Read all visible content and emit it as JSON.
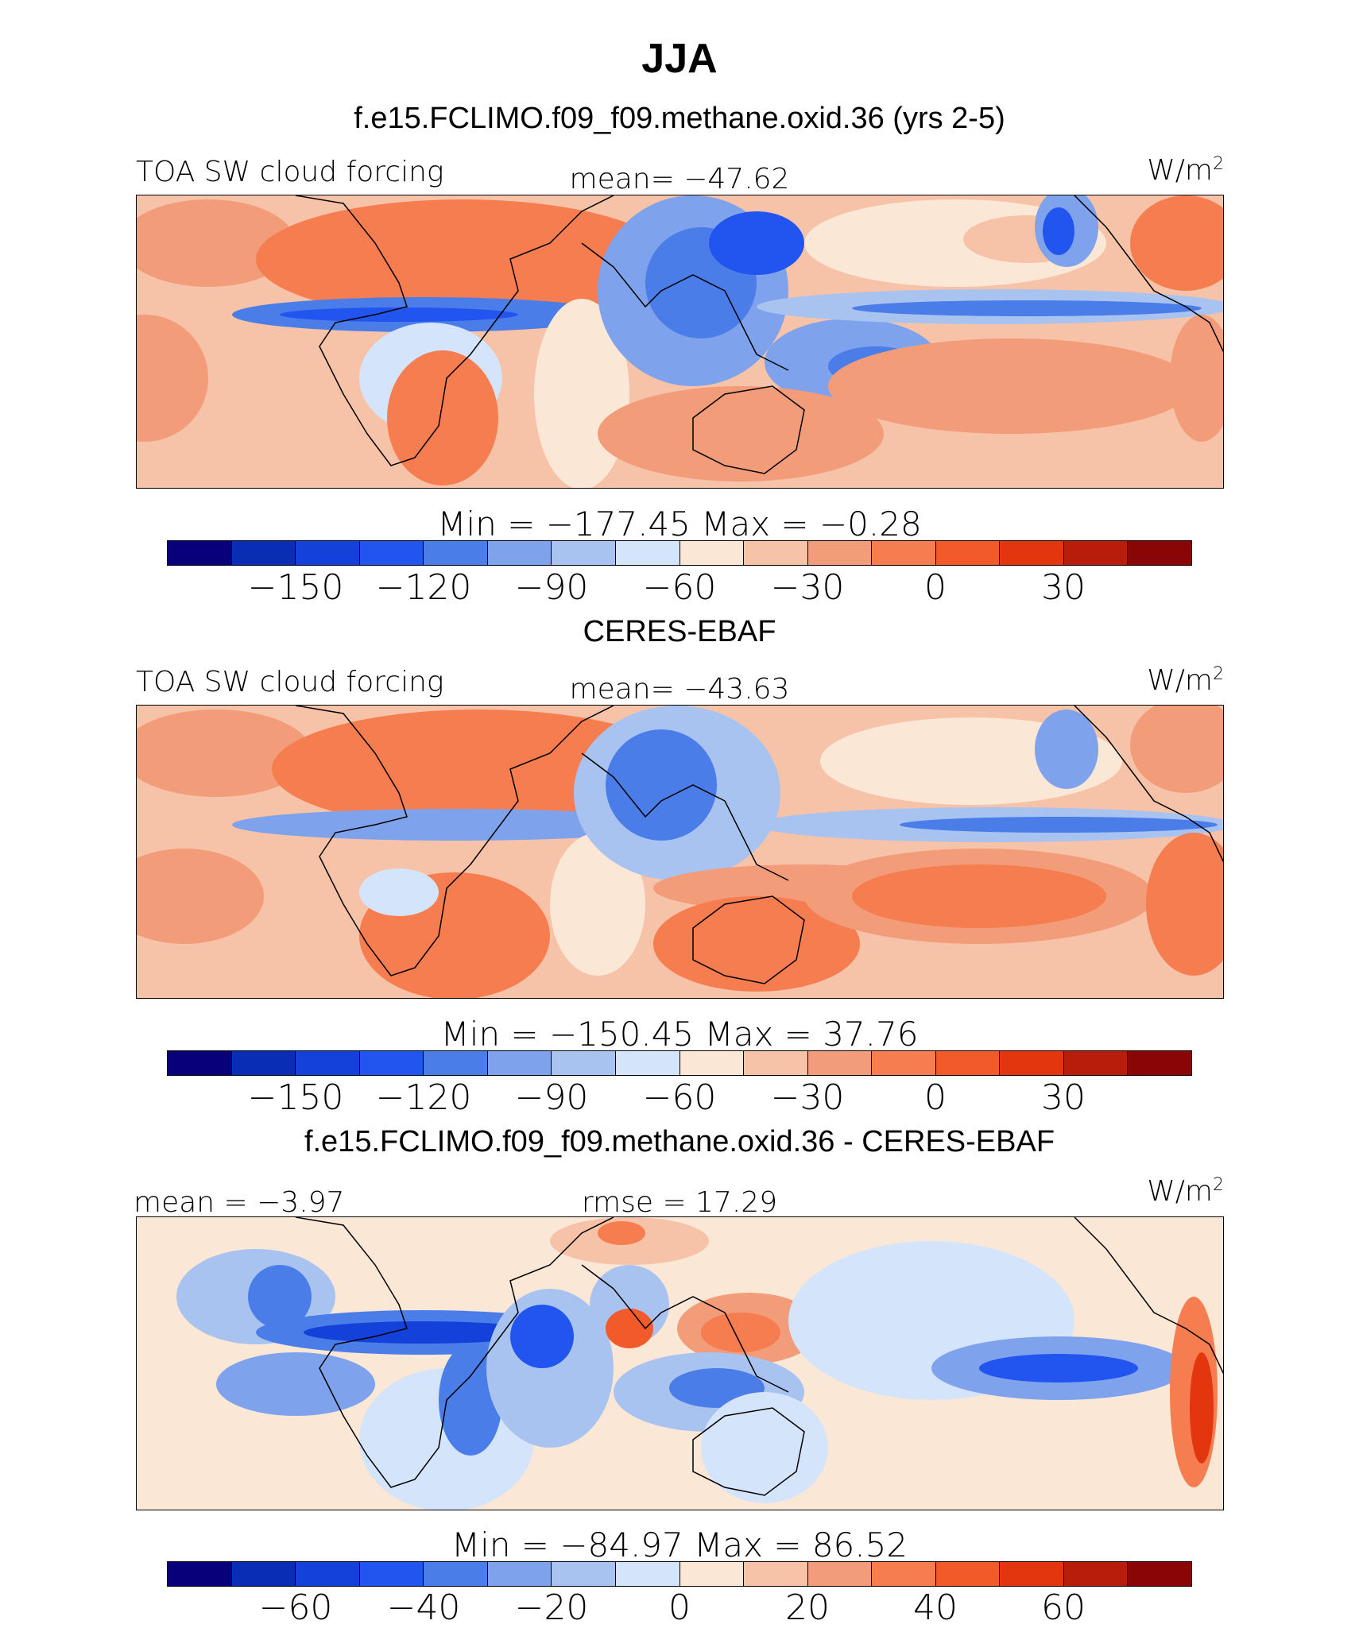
{
  "figure": {
    "title": "JJA",
    "subtitle": "f.e15.FCLIMO.f09_f09.methane.oxid.36 (yrs 2-5)"
  },
  "colors": {
    "abs_scale": [
      "#08007a",
      "#0a2db5",
      "#1441d9",
      "#2255ef",
      "#4a7de8",
      "#7fa2ec",
      "#a9c3f0",
      "#d4e4fb",
      "#fbe7d6",
      "#f6c3a8",
      "#f29c7a",
      "#f57d50",
      "#f25a2a",
      "#e3350e",
      "#b81c0a",
      "#8a0606"
    ],
    "diff_scale": [
      "#08007a",
      "#0a2db5",
      "#1441d9",
      "#2255ef",
      "#4a7de8",
      "#7fa2ec",
      "#a9c3f0",
      "#d4e4fb",
      "#fbe7d6",
      "#f6c3a8",
      "#f29c7a",
      "#f57d50",
      "#f25a2a",
      "#e3350e",
      "#b81c0a",
      "#8a0606"
    ]
  },
  "panels": [
    {
      "title": "",
      "left_label": "TOA SW cloud forcing",
      "center_label": "mean= −47.62",
      "units": "W/m",
      "units_sup": "2",
      "minmax": "Min  =  −177.45  Max  =    −0.28",
      "ticks": [
        "−150",
        "−120",
        "−90",
        "−60",
        "−30",
        "0",
        "30"
      ]
    },
    {
      "title": "CERES-EBAF",
      "left_label": "TOA SW cloud forcing",
      "center_label": "mean= −43.63",
      "units": "W/m",
      "units_sup": "2",
      "minmax": "Min  =  −150.45  Max  =    37.76",
      "ticks": [
        "−150",
        "−120",
        "−90",
        "−60",
        "−30",
        "0",
        "30"
      ]
    },
    {
      "title": "f.e15.FCLIMO.f09_f09.methane.oxid.36 - CERES-EBAF",
      "left_label": "mean  =   −3.97",
      "center_label": "rmse  =   17.29",
      "units": "W/m",
      "units_sup": "2",
      "minmax": "Min  =  −84.97  Max  =   86.52",
      "ticks": [
        "−60",
        "−40",
        "−20",
        "0",
        "20",
        "40",
        "60"
      ]
    }
  ]
}
